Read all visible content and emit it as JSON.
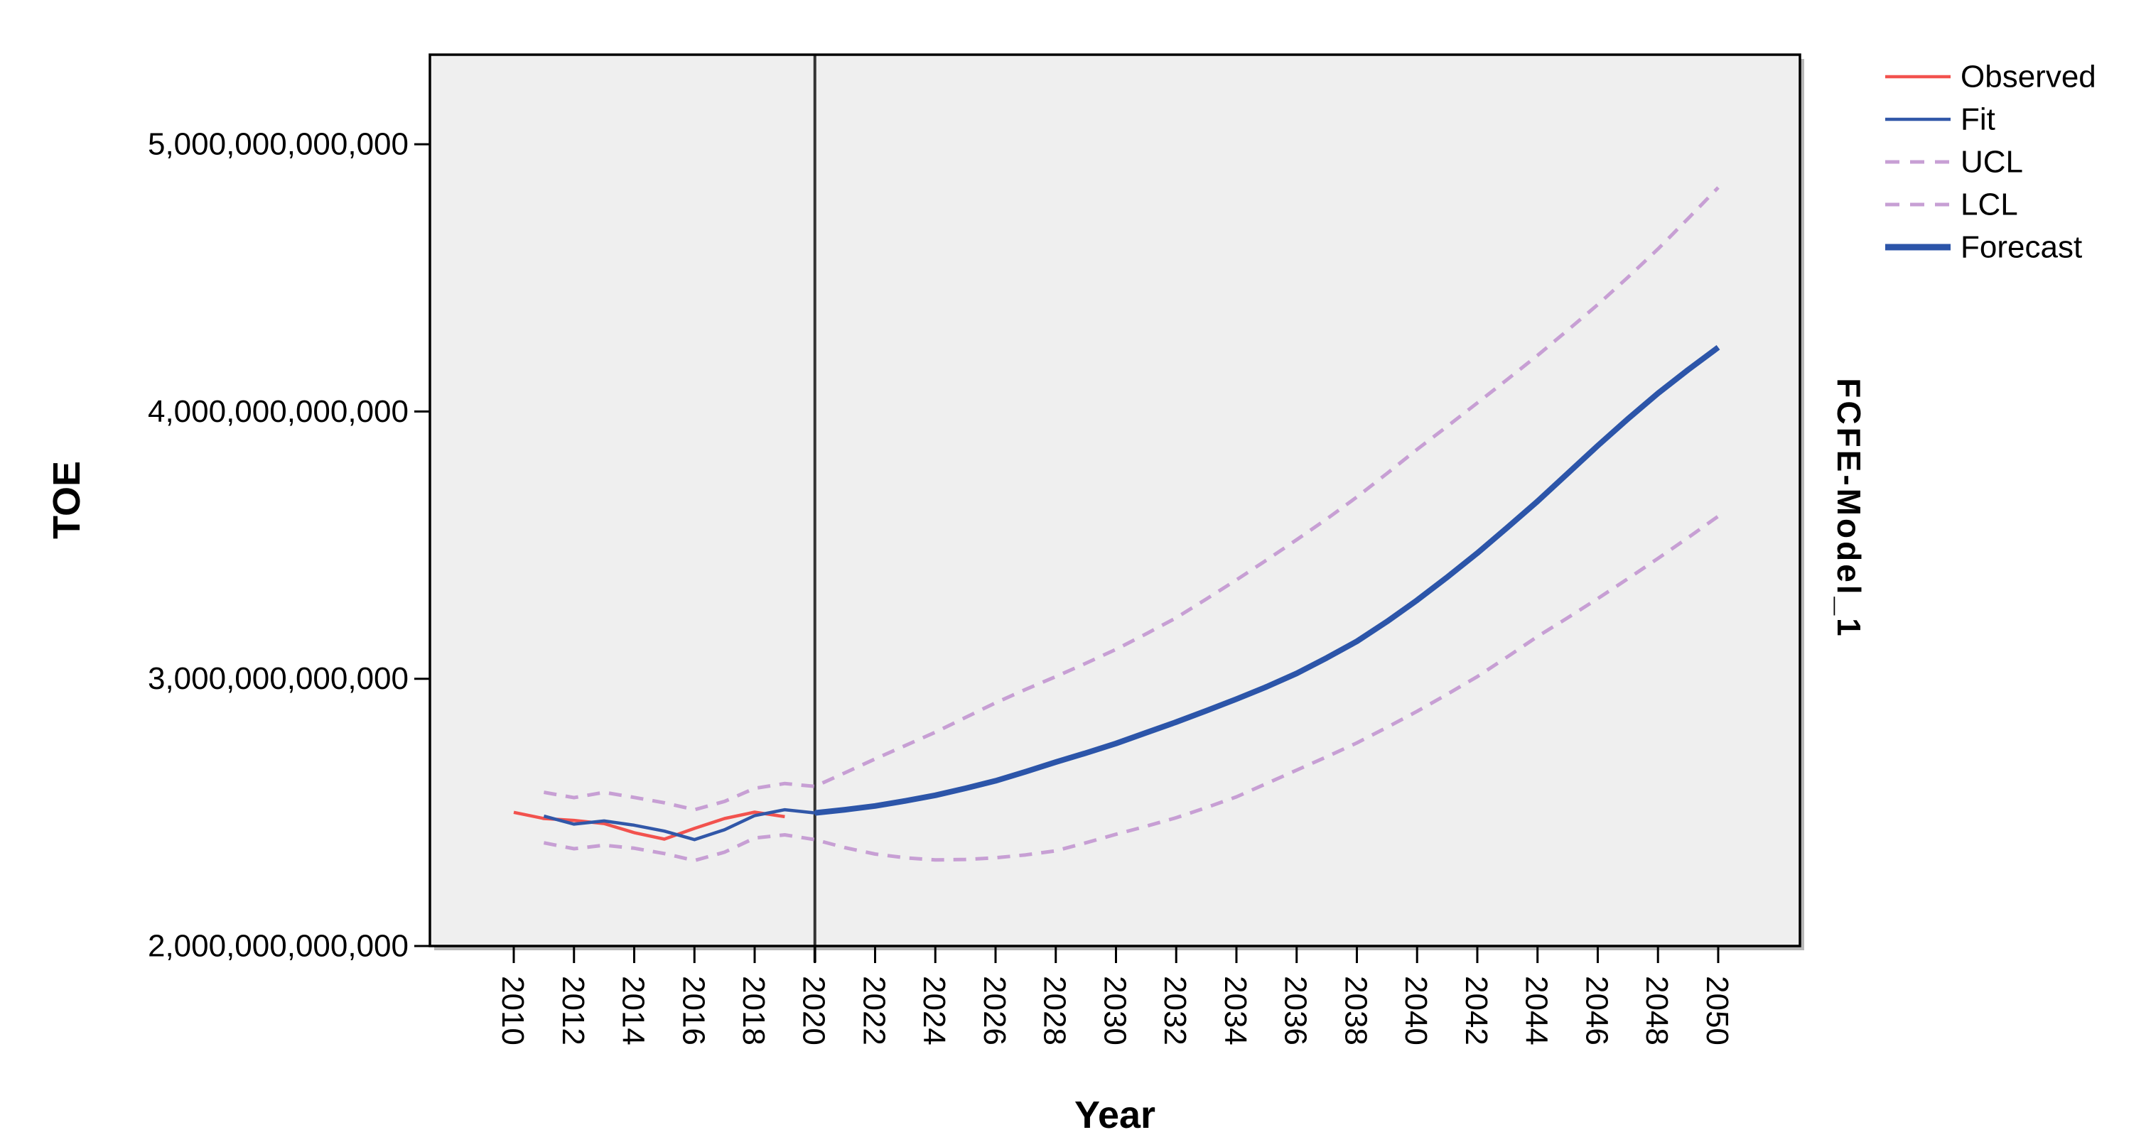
{
  "page": {
    "background": "#FFFFFF"
  },
  "chart_data": {
    "type": "line",
    "title": "",
    "xlabel": "Year",
    "ylabel": "TOE",
    "right_axis_label": "FCFE-Model_1",
    "value_unit": "TOE",
    "values_scale_note": "series values are in trillions (×1,000,000,000,000)",
    "xlim": [
      2007.215,
      2052.715
    ],
    "ylim": [
      2.0,
      5.335
    ],
    "grid": false,
    "legend_position": "top-right-outside",
    "plot_background": "#EFEFEF",
    "frame_color": "#000000",
    "frame_shadow_color": "#B8B8B8",
    "tick_color": "#000000",
    "reference_line": {
      "year": 2020,
      "color": "#333333",
      "width": 4
    },
    "x_ticks": [
      2010,
      2012,
      2014,
      2016,
      2018,
      2020,
      2022,
      2024,
      2026,
      2028,
      2030,
      2032,
      2034,
      2036,
      2038,
      2040,
      2042,
      2044,
      2046,
      2048,
      2050
    ],
    "y_ticks": [
      {
        "value": 2,
        "label": "2,000,000,000,000"
      },
      {
        "value": 3,
        "label": "3,000,000,000,000"
      },
      {
        "value": 4,
        "label": "4,000,000,000,000"
      },
      {
        "value": 5,
        "label": "5,000,000,000,000"
      }
    ],
    "series": [
      {
        "name": "Observed",
        "color": "#F2524E",
        "width": 4.5,
        "dash": null,
        "start_year": 2010,
        "values": [
          2.5,
          2.477,
          2.47,
          2.458,
          2.424,
          2.4,
          2.44,
          2.477,
          2.501,
          2.484
        ]
      },
      {
        "name": "Fit",
        "color": "#3157A8",
        "width": 4.5,
        "dash": null,
        "start_year": 2011,
        "values": [
          2.486,
          2.456,
          2.468,
          2.452,
          2.43,
          2.398,
          2.435,
          2.488,
          2.51,
          2.498
        ]
      },
      {
        "name": "UCL",
        "color": "#C79FD4",
        "width": 5,
        "dash": "18,13",
        "start_year": 2011,
        "values": [
          2.575,
          2.555,
          2.575,
          2.556,
          2.536,
          2.51,
          2.541,
          2.59,
          2.608,
          2.597,
          2.648,
          2.7,
          2.75,
          2.8,
          2.855,
          2.91,
          2.96,
          3.008,
          3.058,
          3.11,
          3.168,
          3.228,
          3.298,
          3.37,
          3.444,
          3.52,
          3.598,
          3.68,
          3.768,
          3.858,
          3.944,
          4.032,
          4.12,
          4.21,
          4.304,
          4.4,
          4.502,
          4.608,
          4.722,
          4.838
        ]
      },
      {
        "name": "LCL",
        "color": "#C79FD4",
        "width": 5,
        "dash": "18,13",
        "start_year": 2011,
        "values": [
          2.386,
          2.364,
          2.377,
          2.366,
          2.346,
          2.32,
          2.351,
          2.404,
          2.416,
          2.398,
          2.368,
          2.344,
          2.33,
          2.322,
          2.324,
          2.33,
          2.341,
          2.356,
          2.386,
          2.418,
          2.448,
          2.48,
          2.518,
          2.558,
          2.608,
          2.658,
          2.708,
          2.76,
          2.818,
          2.878,
          2.942,
          3.008,
          3.082,
          3.158,
          3.228,
          3.3,
          3.374,
          3.45,
          3.528,
          3.608
        ]
      },
      {
        "name": "Forecast",
        "color": "#2C55A9",
        "width": 8,
        "dash": null,
        "start_year": 2020,
        "values": [
          2.498,
          2.51,
          2.524,
          2.543,
          2.564,
          2.59,
          2.618,
          2.652,
          2.688,
          2.722,
          2.758,
          2.798,
          2.838,
          2.88,
          2.924,
          2.97,
          3.02,
          3.078,
          3.14,
          3.214,
          3.294,
          3.38,
          3.47,
          3.566,
          3.664,
          3.768,
          3.872,
          3.972,
          4.068,
          4.156,
          4.24
        ]
      }
    ]
  },
  "legend": {
    "items": [
      {
        "label": "Observed",
        "color": "#F2524E",
        "width": 4.5,
        "dash": null
      },
      {
        "label": "Fit",
        "color": "#3157A8",
        "width": 4.5,
        "dash": null
      },
      {
        "label": "UCL",
        "color": "#C79FD4",
        "width": 5,
        "dash": "20,15"
      },
      {
        "label": "LCL",
        "color": "#C79FD4",
        "width": 5,
        "dash": "20,15"
      },
      {
        "label": "Forecast",
        "color": "#2C55A9",
        "width": 9,
        "dash": null
      }
    ]
  }
}
